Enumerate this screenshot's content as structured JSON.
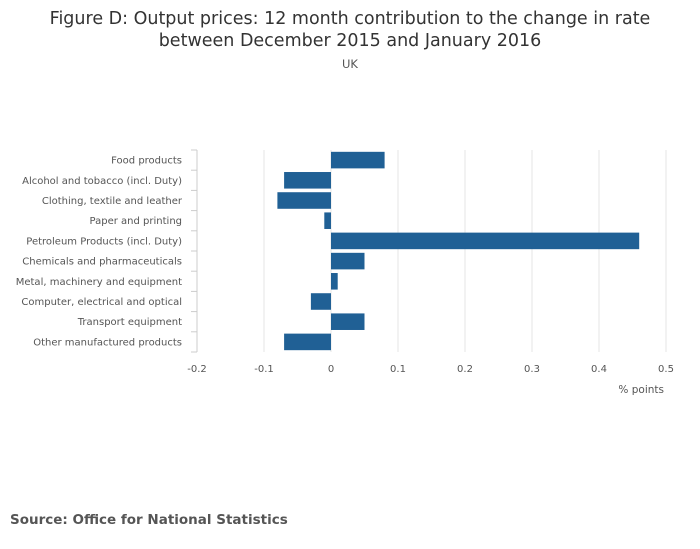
{
  "title_lines": [
    "Figure D: Output prices: 12 month contribution to the change in rate",
    "between December 2015 and January 2016"
  ],
  "subtitle": "UK",
  "source": "Source: Office for National Statistics",
  "colors": {
    "bar": "#206095",
    "grid": "#e6e6e6",
    "axis": "#cccccc",
    "text": "#555555"
  },
  "chart_data": {
    "type": "bar",
    "orientation": "horizontal",
    "title": "Figure D: Output prices: 12 month contribution to the change in rate between December 2015 and January 2016",
    "subtitle": "UK",
    "categories": [
      "Food products",
      "Alcohol and tobacco (incl. Duty)",
      "Clothing, textile and leather",
      "Paper and printing",
      "Petroleum Products (incl. Duty)",
      "Chemicals and pharmaceuticals",
      "Metal, machinery and equipment",
      "Computer, electrical and optical",
      "Transport equipment",
      "Other manufactured products"
    ],
    "values": [
      0.08,
      -0.07,
      -0.08,
      -0.01,
      0.46,
      0.05,
      0.01,
      -0.03,
      0.05,
      -0.07
    ],
    "xlabel": "% points",
    "ylabel": "",
    "xlim": [
      -0.2,
      0.5
    ],
    "xticks": [
      "-0.2",
      "-0.1",
      "0",
      "0.1",
      "0.2",
      "0.3",
      "0.4",
      "0.5"
    ],
    "grid": true,
    "legend": "none"
  }
}
